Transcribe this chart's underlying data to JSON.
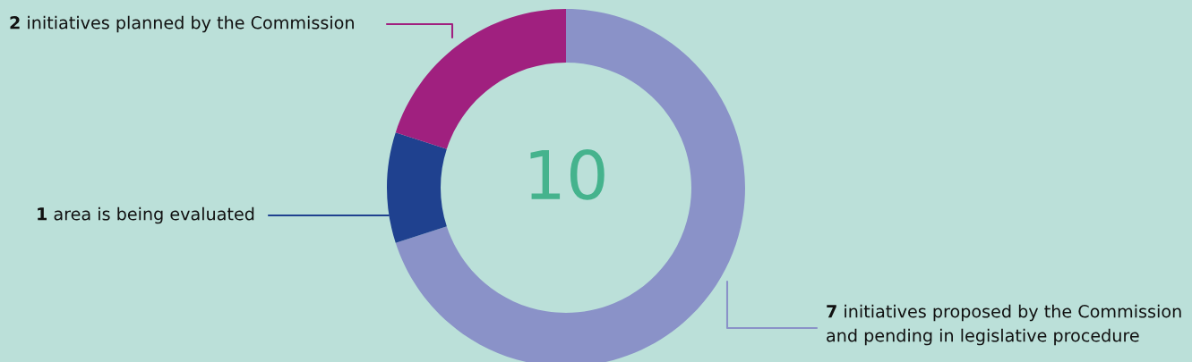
{
  "chart_data": {
    "type": "donut",
    "categories": [
      "initiatives proposed by the Commission\nand pending in legislative procedure",
      "area is being evaluated",
      "initiatives planned by the Commission"
    ],
    "values": [
      7,
      1,
      2
    ],
    "colors": [
      "#8a92c8",
      "#1f418f",
      "#a0207f"
    ],
    "data_labels": true,
    "annotations": [
      "10"
    ]
  }
}
